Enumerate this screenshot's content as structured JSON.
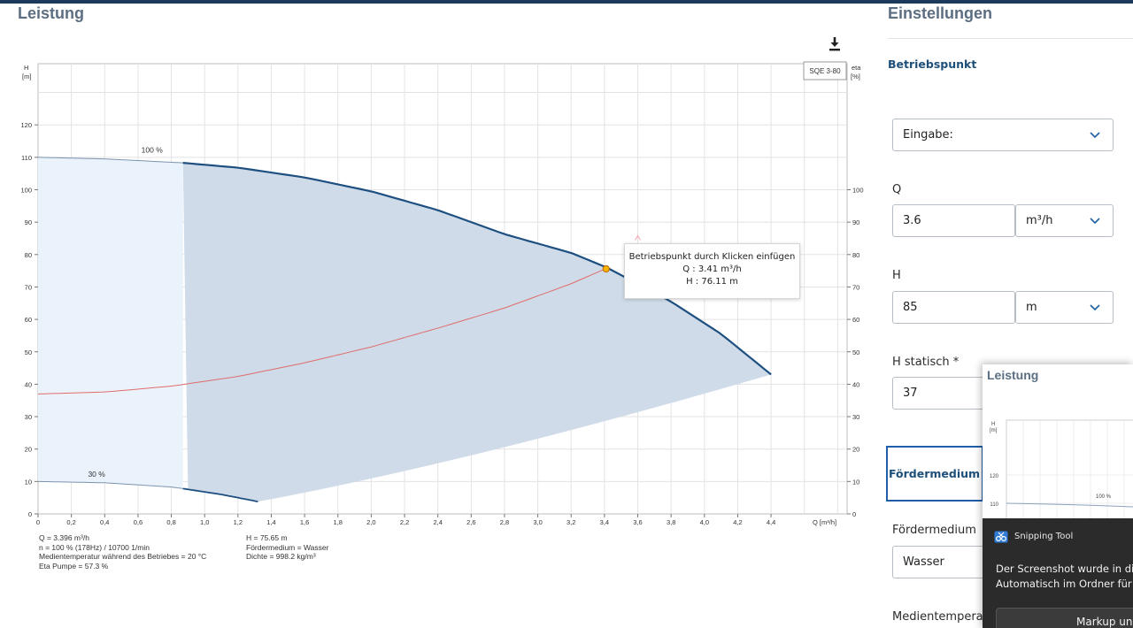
{
  "header": {
    "left_title": "Leistung",
    "right_title": "Einstellungen"
  },
  "chart_data": {
    "type": "line",
    "title": "",
    "model_badge": "SQE 3-80",
    "xlabel": "Q [m³/h]",
    "ylabel_left": [
      "H",
      "[m]"
    ],
    "ylabel_right": [
      "eta",
      "[%]"
    ],
    "xlim": [
      0,
      4.8
    ],
    "ylim": [
      0,
      138
    ],
    "x_ticks": [
      "0",
      "0,2",
      "0,4",
      "0,6",
      "0,8",
      "1,0",
      "1,2",
      "1,4",
      "1,6",
      "1,8",
      "2,0",
      "2,2",
      "2,4",
      "2,6",
      "2,8",
      "3,0",
      "3,2",
      "3,4",
      "3,6",
      "3,8",
      "4,0",
      "4,2",
      "4,4"
    ],
    "y_ticks_left": [
      "0",
      "10",
      "20",
      "30",
      "40",
      "50",
      "60",
      "70",
      "80",
      "90",
      "100",
      "110",
      "120"
    ],
    "y_ticks_right": [
      "0",
      "10",
      "20",
      "30",
      "40",
      "50",
      "60",
      "70",
      "80",
      "90",
      "100"
    ],
    "grid": true,
    "curve_labels": [
      "100 %",
      "30 %"
    ],
    "series": [
      {
        "name": "100 %",
        "color": "#1d4f80",
        "x": [
          0,
          0.4,
          0.87,
          1.2,
          1.6,
          2.0,
          2.4,
          2.8,
          3.2,
          3.41,
          3.8,
          4.1,
          4.4
        ],
        "y": [
          110,
          109.5,
          108.3,
          106.8,
          103.8,
          99.5,
          93.7,
          86.3,
          80.5,
          76.1,
          65.5,
          55.5,
          43
        ]
      },
      {
        "name": "30 %",
        "color": "#1d4f80",
        "x": [
          0,
          0.4,
          0.8,
          0.87,
          1.1,
          1.32
        ],
        "y": [
          10,
          9.6,
          8.3,
          7.8,
          6.0,
          3.8
        ]
      },
      {
        "name": "system",
        "color": "#e06c6c",
        "x": [
          0,
          0.4,
          0.8,
          1.2,
          1.6,
          2.0,
          2.4,
          2.8,
          3.2,
          3.41
        ],
        "y": [
          37,
          37.6,
          39.4,
          42.4,
          46.6,
          51.5,
          57.3,
          63.5,
          71.0,
          75.7
        ]
      }
    ],
    "operating_point": {
      "x": 3.41,
      "y": 75.6
    },
    "duty_marker": {
      "x": 3.6,
      "y": 85
    }
  },
  "info_left": [
    "Q = 3.396 m³/h",
    "n = 100 % (178Hz) / 10700 1/min",
    "Medientemperatur während des Betriebes = 20 °C",
    "Eta Pumpe = 57.3 %"
  ],
  "info_right": [
    "H = 75.65 m",
    "Fördermedium = Wasser",
    "Dichte = 998.2 kg/m³"
  ],
  "tooltip": {
    "title": "Betriebspunkt durch Klicken einfügen",
    "q": "Q : 3.41 m³/h",
    "h": "H : 76.11 m"
  },
  "settings": {
    "betriebspunkt_label": "Betriebspunkt",
    "eingabe_value": "Eingabe:",
    "q_label": "Q",
    "q_value": "3.6",
    "q_unit": "m³/h",
    "h_label": "H",
    "h_value": "85",
    "h_unit": "m",
    "hstat_label": "H statisch *",
    "hstat_value": "37",
    "fordermedium_tab": "Fördermedium",
    "fordermedium_label": "Fördermedium",
    "fordermedium_value": "Wasser",
    "medientemp_label": "Medientempera"
  },
  "thumbnail": {
    "title": "Leistung",
    "ylabel": [
      "H",
      "[m]"
    ],
    "y_ticks": [
      "120",
      "110"
    ],
    "curve_label": "100 %"
  },
  "toast": {
    "app": "Snipping Tool",
    "line1": "Der Screenshot wurde in die",
    "line2": "Automatisch im Ordner für",
    "button": "Markup und"
  }
}
